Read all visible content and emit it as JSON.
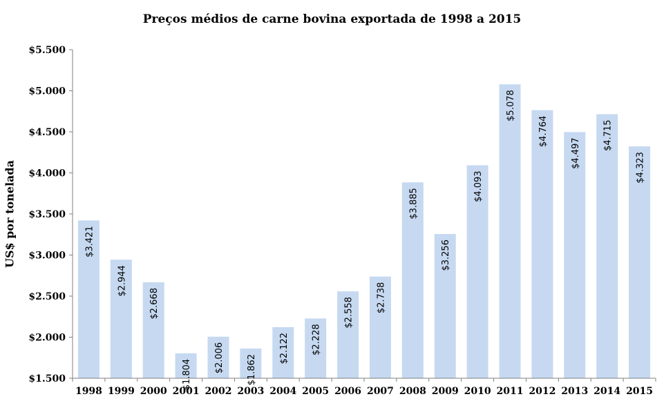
{
  "chart_data": {
    "type": "bar",
    "title": "Preços médios de carne bovina exportada de 1998 a 2015",
    "xlabel": "",
    "ylabel": "US$ por tonelada",
    "ylim": [
      1500,
      5500
    ],
    "ytick_labels": [
      "$1.500",
      "$2.000",
      "$2.500",
      "$3.000",
      "$3.500",
      "$4.000",
      "$4.500",
      "$5.000",
      "$5.500"
    ],
    "categories": [
      "1998",
      "1999",
      "2000",
      "2001",
      "2002",
      "2003",
      "2004",
      "2005",
      "2006",
      "2007",
      "2008",
      "2009",
      "2010",
      "2011",
      "2012",
      "2013",
      "2014",
      "2015"
    ],
    "values": [
      3421,
      2944,
      2668,
      1804,
      2006,
      1862,
      2122,
      2228,
      2558,
      2738,
      3885,
      3256,
      4093,
      5078,
      4764,
      4497,
      4715,
      4323
    ],
    "data_labels": [
      "$3.421",
      "$2.944",
      "$2.668",
      "$1.804",
      "$2.006",
      "$1.862",
      "$2.122",
      "$2.228",
      "$2.558",
      "$2.738",
      "$3.885",
      "$3.256",
      "$4.093",
      "$5.078",
      "$4.764",
      "$4.497",
      "$4.715",
      "$4.323"
    ],
    "bar_color": "#c6d9f1",
    "grid": false,
    "legend": "none"
  }
}
